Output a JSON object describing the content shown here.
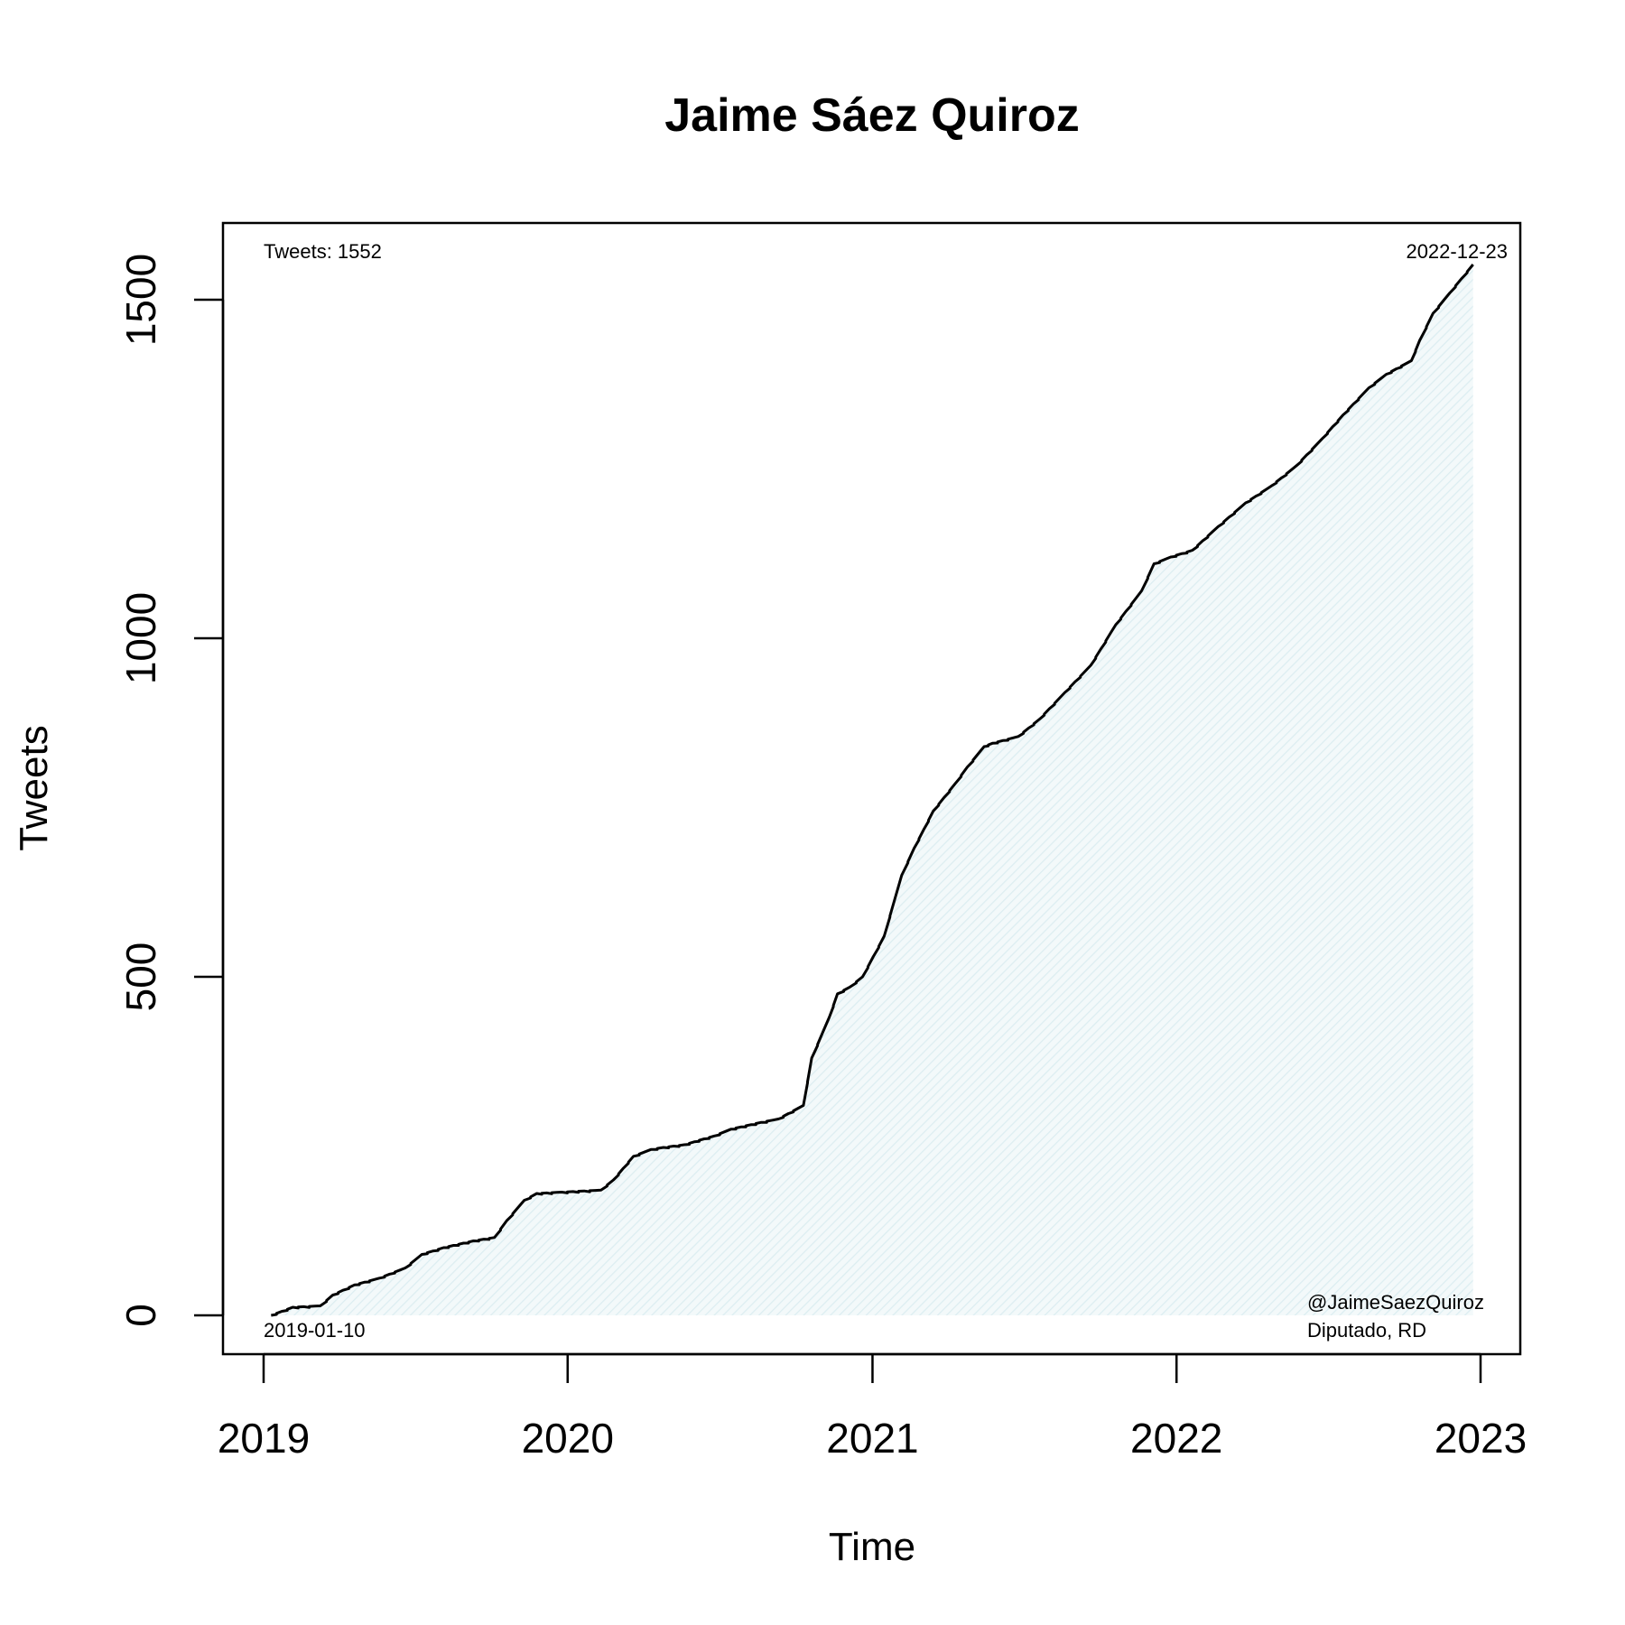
{
  "chart_data": {
    "type": "area",
    "title": "Jaime Sáez Quiroz",
    "xlabel": "Time",
    "ylabel": "Tweets",
    "xlim": [
      "2019-01-01",
      "2023-01-01"
    ],
    "ylim": [
      0,
      1500
    ],
    "x_ticks": [
      "2019",
      "2020",
      "2021",
      "2022",
      "2023"
    ],
    "y_ticks": [
      0,
      500,
      1000,
      1500
    ],
    "grid": false,
    "legend": "none",
    "fill_color": "#e3f1f4",
    "line_color": "#000000",
    "annotations": {
      "total": "Tweets: 1552",
      "end_date": "2022-12-23",
      "start_date": "2019-01-10",
      "handle": "@JaimeSaezQuiroz",
      "role": "Diputado, RD"
    },
    "series": [
      {
        "x": [
          "2019-01-10",
          "2019-02-05",
          "2019-03-10",
          "2019-03-25",
          "2019-04-20",
          "2019-05-20",
          "2019-06-20",
          "2019-07-10",
          "2019-08-05",
          "2019-09-10",
          "2019-10-05",
          "2019-10-20",
          "2019-11-10",
          "2019-11-25",
          "2019-12-25",
          "2020-02-10",
          "2020-02-25",
          "2020-03-20",
          "2020-04-10",
          "2020-04-25",
          "2020-05-20",
          "2020-06-25",
          "2020-07-15",
          "2020-08-20",
          "2020-09-10",
          "2020-10-10",
          "2020-10-20",
          "2020-11-10",
          "2020-11-20",
          "2020-12-05",
          "2020-12-20",
          "2021-01-15",
          "2021-02-05",
          "2021-02-20",
          "2021-03-15",
          "2021-04-10",
          "2021-04-25",
          "2021-05-15",
          "2021-05-25",
          "2021-06-25",
          "2021-07-20",
          "2021-08-20",
          "2021-09-20",
          "2021-10-20",
          "2021-11-20",
          "2021-12-05",
          "2021-12-25",
          "2022-01-20",
          "2022-02-20",
          "2022-03-25",
          "2022-04-25",
          "2022-05-25",
          "2022-06-25",
          "2022-07-20",
          "2022-08-20",
          "2022-09-10",
          "2022-10-10",
          "2022-10-20",
          "2022-11-05",
          "2022-11-25",
          "2022-12-23"
        ],
        "values": [
          0,
          12,
          14,
          30,
          45,
          55,
          70,
          90,
          100,
          110,
          115,
          140,
          170,
          180,
          182,
          185,
          200,
          235,
          245,
          248,
          252,
          265,
          275,
          285,
          290,
          310,
          380,
          440,
          475,
          485,
          500,
          560,
          650,
          690,
          745,
          785,
          810,
          840,
          845,
          855,
          880,
          920,
          960,
          1020,
          1070,
          1110,
          1120,
          1130,
          1165,
          1200,
          1225,
          1255,
          1295,
          1330,
          1370,
          1390,
          1410,
          1440,
          1480,
          1510,
          1552
        ]
      }
    ]
  }
}
